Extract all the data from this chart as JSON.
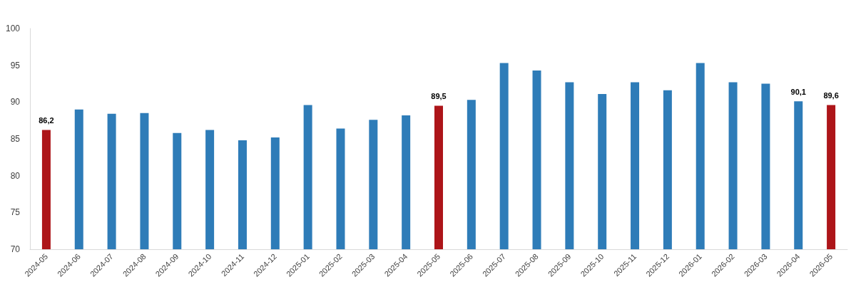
{
  "chart_data": {
    "type": "bar",
    "categories": [
      "2024-05",
      "2024-06",
      "2024-07",
      "2024-08",
      "2024-09",
      "2024-10",
      "2024-11",
      "2024-12",
      "2025-01",
      "2025-02",
      "2025-03",
      "2025-04",
      "2025-05",
      "2025-06",
      "2025-07",
      "2025-08",
      "2025-09",
      "2025-10",
      "2025-11",
      "2025-12",
      "2026-01",
      "2026-02",
      "2026-03",
      "2026-04",
      "2026-05"
    ],
    "values": [
      86.2,
      89.0,
      88.4,
      88.5,
      85.8,
      86.2,
      84.8,
      85.2,
      89.6,
      86.4,
      87.6,
      88.2,
      89.5,
      90.3,
      95.3,
      94.3,
      92.7,
      91.1,
      92.7,
      91.6,
      95.3,
      92.7,
      92.5,
      90.1,
      89.6
    ],
    "colors": [
      "#ad1519",
      "#2e7cb8",
      "#2e7cb8",
      "#2e7cb8",
      "#2e7cb8",
      "#2e7cb8",
      "#2e7cb8",
      "#2e7cb8",
      "#2e7cb8",
      "#2e7cb8",
      "#2e7cb8",
      "#2e7cb8",
      "#ad1519",
      "#2e7cb8",
      "#2e7cb8",
      "#2e7cb8",
      "#2e7cb8",
      "#2e7cb8",
      "#2e7cb8",
      "#2e7cb8",
      "#2e7cb8",
      "#2e7cb8",
      "#2e7cb8",
      "#2e7cb8",
      "#ad1519"
    ],
    "value_labels": [
      "86,2",
      null,
      null,
      null,
      null,
      null,
      null,
      null,
      null,
      null,
      null,
      null,
      "89,5",
      null,
      null,
      null,
      null,
      null,
      null,
      null,
      null,
      null,
      null,
      "90,1",
      "89,6"
    ],
    "ylim": [
      70,
      100
    ],
    "yticks": [
      70,
      75,
      80,
      85,
      90,
      95,
      100
    ],
    "grid": false
  }
}
